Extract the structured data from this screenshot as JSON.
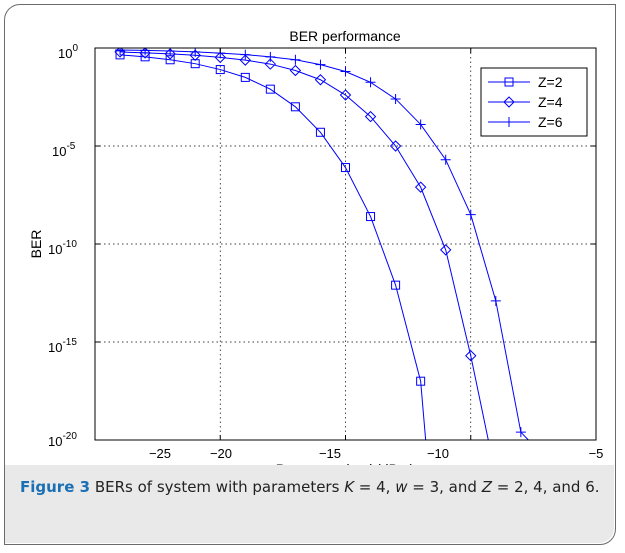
{
  "caption": {
    "label": "Figure 3",
    "parts": [
      " BERs of system with parameters ",
      "K",
      " = 4, ",
      "w",
      " = 3, and ",
      "Z",
      " = 2, 4, and 6."
    ]
  },
  "colors": {
    "series": "#0000ff",
    "grid": "#000000",
    "caption_band": "#e9e9e9",
    "figure_label": "#1a6fb5"
  },
  "chart_data": {
    "type": "line",
    "title": "BER performance",
    "xlabel": "Power received (dBm)",
    "ylabel": "BER",
    "xlim": [
      -25,
      -5
    ],
    "ylim_log10": [
      -20,
      0
    ],
    "y_scale": "log",
    "grid": true,
    "legend_position": "top-right",
    "x_ticks": [
      "−25",
      "−20",
      "−15",
      "−10",
      "−5"
    ],
    "y_ticks": [
      {
        "base": "10",
        "exp": "0"
      },
      {
        "base": "10",
        "exp": "-5"
      },
      {
        "base": "10",
        "exp": "-10"
      },
      {
        "base": "10",
        "exp": "-15"
      },
      {
        "base": "10",
        "exp": "-20"
      }
    ],
    "series": [
      {
        "name": "Z=2",
        "marker": "square",
        "x": [
          -24,
          -23,
          -22,
          -21,
          -20,
          -19,
          -18,
          -17,
          -16,
          -15,
          -14,
          -13,
          -12,
          -11.8
        ],
        "log10_y": [
          -0.35,
          -0.45,
          -0.6,
          -0.8,
          -1.1,
          -1.5,
          -2.1,
          -3.0,
          -4.3,
          -6.1,
          -8.6,
          -12.1,
          -17.0,
          -20.0
        ]
      },
      {
        "name": "Z=4",
        "marker": "diamond",
        "x": [
          -24,
          -23,
          -22,
          -21,
          -20,
          -19,
          -18,
          -17,
          -16,
          -15,
          -14,
          -13,
          -12,
          -11,
          -10,
          -9.3
        ],
        "log10_y": [
          -0.2,
          -0.25,
          -0.3,
          -0.37,
          -0.48,
          -0.62,
          -0.82,
          -1.15,
          -1.62,
          -2.4,
          -3.5,
          -5.0,
          -7.1,
          -10.3,
          -15.7,
          -20.0
        ]
      },
      {
        "name": "Z=6",
        "marker": "plus",
        "x": [
          -24,
          -23,
          -22,
          -21,
          -20,
          -19,
          -18,
          -17,
          -16,
          -15,
          -14,
          -13,
          -12,
          -11,
          -10,
          -9,
          -8,
          -7.7
        ],
        "log10_y": [
          -0.1,
          -0.12,
          -0.15,
          -0.2,
          -0.26,
          -0.34,
          -0.45,
          -0.6,
          -0.85,
          -1.2,
          -1.75,
          -2.6,
          -3.9,
          -5.7,
          -8.5,
          -12.9,
          -19.6,
          -20.0
        ]
      }
    ]
  }
}
